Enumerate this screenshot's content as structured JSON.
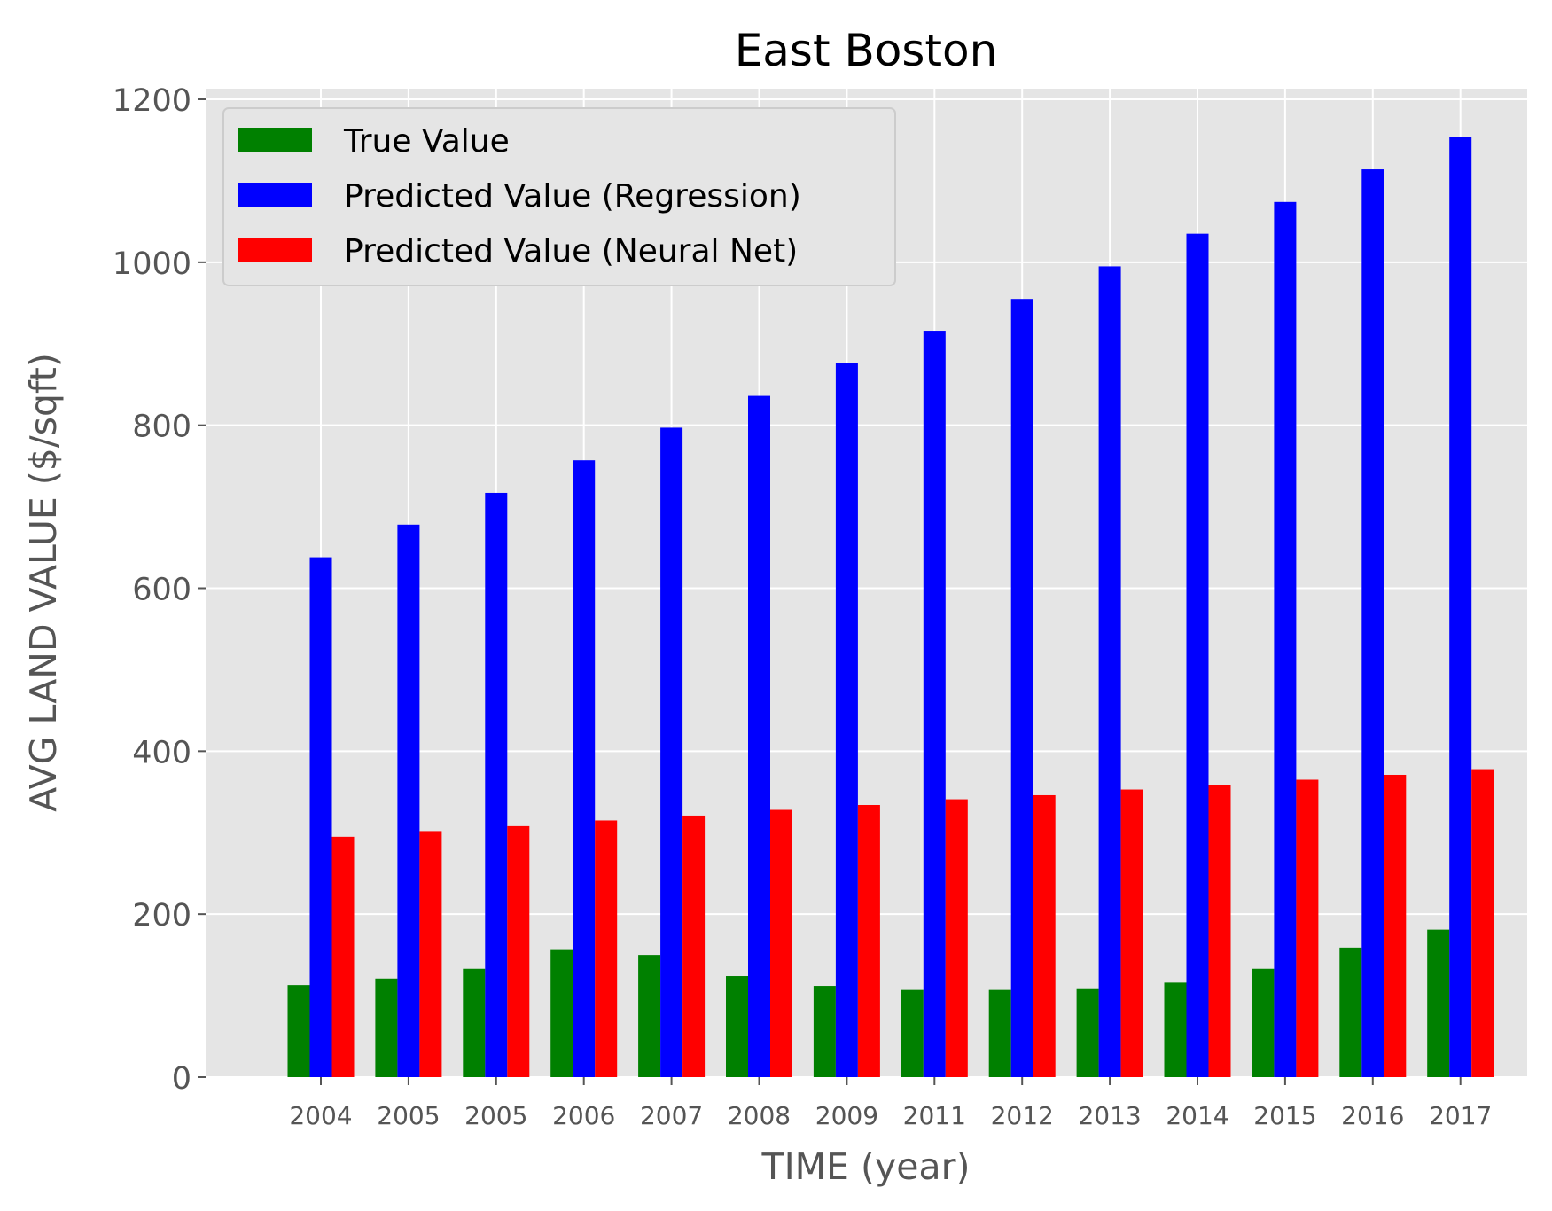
{
  "chart_data": {
    "type": "bar",
    "title": "East Boston",
    "xlabel": "TIME (year)",
    "ylabel": "AVG LAND VALUE ($/sqft)",
    "ylim": [
      0,
      1200
    ],
    "yticks": [
      0,
      200,
      400,
      600,
      800,
      1000,
      1200
    ],
    "grid": true,
    "legend_position": "top-left",
    "categories": [
      "2004",
      "2005",
      "2005",
      "2006",
      "2007",
      "2008",
      "2009",
      "2011",
      "2012",
      "2013",
      "2014",
      "2015",
      "2016",
      "2017"
    ],
    "series": [
      {
        "name": "True Value",
        "color": "#008000",
        "values": [
          113,
          121,
          133,
          156,
          150,
          124,
          112,
          107,
          107,
          108,
          116,
          133,
          159,
          181
        ]
      },
      {
        "name": "Predicted Value (Regression)",
        "color": "#0000ff",
        "values": [
          638,
          678,
          717,
          757,
          797,
          836,
          876,
          916,
          955,
          995,
          1035,
          1074,
          1114,
          1154
        ]
      },
      {
        "name": "Predicted Value (Neural Net)",
        "color": "#ff0000",
        "values": [
          295,
          302,
          308,
          315,
          321,
          328,
          334,
          341,
          346,
          353,
          359,
          365,
          371,
          378
        ]
      }
    ]
  }
}
